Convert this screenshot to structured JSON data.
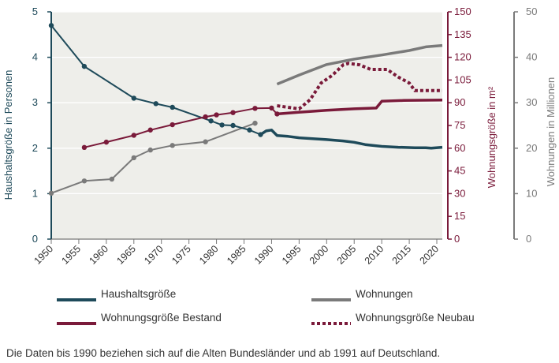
{
  "chart_data": {
    "type": "line",
    "title": "",
    "xlabel": "",
    "x_ticks": [
      "1950",
      "1955",
      "1960",
      "1965",
      "1970",
      "1975",
      "1980",
      "1985",
      "1990",
      "1995",
      "2000",
      "2005",
      "2010",
      "2015",
      "2020"
    ],
    "xlim": [
      1950,
      2021
    ],
    "axes": {
      "left": {
        "label": "Haushaltsgröße in Personen",
        "ylim": [
          0,
          5
        ],
        "ticks": [
          "0",
          "1",
          "2",
          "3",
          "4",
          "5"
        ],
        "color": "#1e4a5a"
      },
      "middle": {
        "label": "Wohnungsgröße in m²",
        "ylim": [
          0,
          150
        ],
        "ticks": [
          "0",
          "15",
          "30",
          "45",
          "60",
          "75",
          "90",
          "105",
          "120",
          "135",
          "150"
        ],
        "color": "#7a1a3a"
      },
      "right": {
        "label": "Wohnungen in Millionen",
        "ylim": [
          0,
          50
        ],
        "ticks": [
          "0",
          "10",
          "20",
          "30",
          "40",
          "50"
        ],
        "color": "#7a7a7a"
      }
    },
    "grid": true,
    "legend_position": "bottom",
    "series": [
      {
        "name": "Haushaltsgröße",
        "axis": "left",
        "color": "#1e4a5a",
        "style": "solid",
        "segments": [
          {
            "markers": true,
            "points": [
              [
                1950,
                4.7
              ],
              [
                1956,
                3.8
              ],
              [
                1965,
                3.1
              ],
              [
                1969,
                2.98
              ],
              [
                1972,
                2.9
              ],
              [
                1979,
                2.6
              ],
              [
                1981,
                2.51
              ],
              [
                1983,
                2.5
              ],
              [
                1986,
                2.4
              ],
              [
                1988,
                2.3
              ]
            ]
          },
          {
            "markers": false,
            "points": [
              [
                1988,
                2.3
              ],
              [
                1989,
                2.38
              ],
              [
                1990,
                2.4
              ],
              [
                1991,
                2.28
              ],
              [
                1993,
                2.26
              ],
              [
                1995,
                2.23
              ],
              [
                2000,
                2.19
              ],
              [
                2003,
                2.16
              ],
              [
                2005,
                2.13
              ],
              [
                2007,
                2.08
              ],
              [
                2010,
                2.04
              ],
              [
                2013,
                2.02
              ],
              [
                2016,
                2.01
              ],
              [
                2018,
                2.01
              ],
              [
                2019,
                2.0
              ],
              [
                2021,
                2.02
              ]
            ]
          }
        ]
      },
      {
        "name": "Wohnungen",
        "axis": "right",
        "color": "#7a7a7a",
        "style": "solid",
        "segments": [
          {
            "markers": true,
            "points": [
              [
                1950,
                10.1
              ],
              [
                1956,
                12.8
              ],
              [
                1961,
                13.2
              ],
              [
                1965,
                17.9
              ],
              [
                1968,
                19.6
              ],
              [
                1972,
                20.6
              ],
              [
                1978,
                21.4
              ],
              [
                1987,
                25.5
              ]
            ]
          },
          {
            "markers": false,
            "points": [
              [
                1991,
                34.1
              ],
              [
                1995,
                36.1
              ],
              [
                2000,
                38.4
              ],
              [
                2005,
                39.6
              ],
              [
                2010,
                40.5
              ],
              [
                2015,
                41.5
              ],
              [
                2018,
                42.3
              ],
              [
                2021,
                42.6
              ]
            ]
          }
        ]
      },
      {
        "name": "Wohnungsgröße Bestand",
        "axis": "middle",
        "color": "#7a1a3a",
        "style": "solid",
        "segments": [
          {
            "markers": true,
            "points": [
              [
                1956,
                60.5
              ],
              [
                1960,
                64.0
              ],
              [
                1965,
                68.5
              ],
              [
                1968,
                72.0
              ],
              [
                1972,
                75.5
              ],
              [
                1978,
                80.7
              ],
              [
                1980,
                82.0
              ],
              [
                1983,
                83.5
              ],
              [
                1987,
                86.3
              ],
              [
                1990,
                86.5
              ],
              [
                1991,
                82.6
              ]
            ]
          },
          {
            "markers": false,
            "points": [
              [
                1991,
                82.6
              ],
              [
                1994,
                83.5
              ],
              [
                2000,
                85.0
              ],
              [
                2005,
                86.0
              ],
              [
                2009,
                86.5
              ],
              [
                2010,
                91.0
              ],
              [
                2014,
                91.5
              ],
              [
                2021,
                91.8
              ]
            ]
          }
        ]
      },
      {
        "name": "Wohnungsgröße Neubau",
        "axis": "middle",
        "color": "#7a1a3a",
        "style": "dotted",
        "segments": [
          {
            "markers": false,
            "points": [
              [
                1991,
                88.0
              ],
              [
                1993,
                87.0
              ],
              [
                1995,
                86.0
              ],
              [
                1997,
                92.0
              ],
              [
                1999,
                103.0
              ],
              [
                2001,
                108.0
              ],
              [
                2003,
                115.0
              ],
              [
                2004,
                116.0
              ],
              [
                2006,
                115.0
              ],
              [
                2008,
                112.0
              ],
              [
                2011,
                112.0
              ],
              [
                2013,
                107.0
              ],
              [
                2015,
                103.0
              ],
              [
                2016,
                98.0
              ],
              [
                2018,
                98.0
              ],
              [
                2021,
                98.0
              ]
            ]
          }
        ]
      }
    ],
    "annotation": "Die Daten bis 1990 beziehen sich auf die Alten Bundesländer und ab 1991 auf Deutschland."
  }
}
